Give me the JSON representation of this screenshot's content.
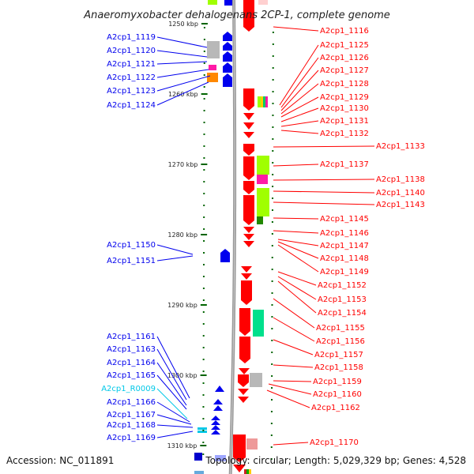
{
  "title": "Anaeromyxobacter dehalogenans 2CP-1, complete genome",
  "footer": {
    "accession": "Accession: NC_011891",
    "topology": "Topology: circular; Length: 5,029,329 bp; Genes: 4,528"
  },
  "colors": {
    "minus_strand": "#0000ee",
    "plus_strand": "#ff0000",
    "rna": "#00c8e8",
    "axis": "#888888",
    "tick": "#006400"
  },
  "scale": [
    {
      "label": "1250 kbp"
    },
    {
      "label": "1260 kbp"
    },
    {
      "label": "1270 kbp"
    },
    {
      "label": "1280 kbp"
    },
    {
      "label": "1290 kbp"
    },
    {
      "label": "1300 kbp"
    },
    {
      "label": "1310 kbp"
    }
  ],
  "left_labels": [
    {
      "text": "A2cp1_1119",
      "kind": "gene"
    },
    {
      "text": "A2cp1_1120",
      "kind": "gene"
    },
    {
      "text": "A2cp1_1121",
      "kind": "gene"
    },
    {
      "text": "A2cp1_1122",
      "kind": "gene"
    },
    {
      "text": "A2cp1_1123",
      "kind": "gene"
    },
    {
      "text": "A2cp1_1124",
      "kind": "gene"
    },
    {
      "text": "A2cp1_1150",
      "kind": "gene"
    },
    {
      "text": "A2cp1_1151",
      "kind": "gene"
    },
    {
      "text": "A2cp1_1161",
      "kind": "gene"
    },
    {
      "text": "A2cp1_1163",
      "kind": "gene"
    },
    {
      "text": "A2cp1_1164",
      "kind": "gene"
    },
    {
      "text": "A2cp1_1165",
      "kind": "gene"
    },
    {
      "text": "A2cp1_R0009",
      "kind": "rna"
    },
    {
      "text": "A2cp1_1166",
      "kind": "gene"
    },
    {
      "text": "A2cp1_1167",
      "kind": "gene"
    },
    {
      "text": "A2cp1_1168",
      "kind": "gene"
    },
    {
      "text": "A2cp1_1169",
      "kind": "gene"
    }
  ],
  "right_labels": [
    {
      "text": "A2cp1_1116"
    },
    {
      "text": "A2cp1_1125"
    },
    {
      "text": "A2cp1_1126"
    },
    {
      "text": "A2cp1_1127"
    },
    {
      "text": "A2cp1_1128"
    },
    {
      "text": "A2cp1_1129"
    },
    {
      "text": "A2cp1_1130"
    },
    {
      "text": "A2cp1_1131"
    },
    {
      "text": "A2cp1_1132"
    },
    {
      "text": "A2cp1_1133"
    },
    {
      "text": "A2cp1_1137"
    },
    {
      "text": "A2cp1_1138"
    },
    {
      "text": "A2cp1_1140"
    },
    {
      "text": "A2cp1_1143"
    },
    {
      "text": "A2cp1_1145"
    },
    {
      "text": "A2cp1_1146"
    },
    {
      "text": "A2cp1_1147"
    },
    {
      "text": "A2cp1_1148"
    },
    {
      "text": "A2cp1_1149"
    },
    {
      "text": "A2cp1_1152"
    },
    {
      "text": "A2cp1_1153"
    },
    {
      "text": "A2cp1_1154"
    },
    {
      "text": "A2cp1_1155"
    },
    {
      "text": "A2cp1_1156"
    },
    {
      "text": "A2cp1_1157"
    },
    {
      "text": "A2cp1_1158"
    },
    {
      "text": "A2cp1_1159"
    },
    {
      "text": "A2cp1_1160"
    },
    {
      "text": "A2cp1_1162"
    },
    {
      "text": "A2cp1_1170"
    }
  ]
}
